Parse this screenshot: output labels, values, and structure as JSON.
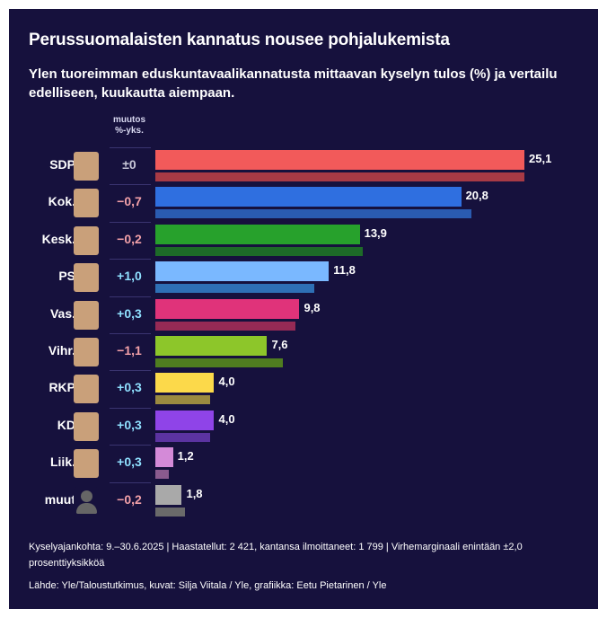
{
  "title": "Perussuomalaisten kannatus nousee pohjalukemista",
  "subtitle": "Ylen tuoreimman eduskuntavaalikannatusta mittaavan kyselyn tulos (%) ja vertailu edelliseen, kuukautta aiempaan.",
  "change_header": [
    "muutos",
    "%-yks."
  ],
  "chart_data": {
    "type": "bar",
    "title": "Perussuomalaisten kannatus nousee pohjalukemista",
    "categories": [
      "SDP",
      "Kok.",
      "Kesk.",
      "PS",
      "Vas.",
      "Vihr.",
      "RKP",
      "KD",
      "Liik.",
      "muut"
    ],
    "series": [
      {
        "name": "current",
        "values": [
          25.1,
          20.8,
          13.9,
          11.8,
          9.8,
          7.6,
          4.0,
          4.0,
          1.2,
          1.8
        ]
      },
      {
        "name": "previous",
        "values": [
          25.1,
          21.5,
          14.1,
          10.8,
          9.5,
          8.7,
          3.7,
          3.7,
          0.9,
          2.0
        ]
      }
    ],
    "value_labels": [
      "25,1",
      "20,8",
      "13,9",
      "11,8",
      "9,8",
      "7,6",
      "4,0",
      "4,0",
      "1,2",
      "1,8"
    ],
    "changes": [
      "±0",
      "−0,7",
      "−0,2",
      "+1,0",
      "+0,3",
      "−1,1",
      "+0,3",
      "+0,3",
      "+0,3",
      "−0,2"
    ],
    "colors": [
      "#f25a5a",
      "#2f6fe0",
      "#27a12c",
      "#7ab8ff",
      "#e0337a",
      "#8dc62a",
      "#fcd94a",
      "#8f44e8",
      "#d48ad8",
      "#a9a9a9"
    ],
    "prev_colors": [
      "#a83a45",
      "#2a5bb0",
      "#1d6b28",
      "#2e6fb5",
      "#962a55",
      "#4f7d20",
      "#9b8a40",
      "#5b33a0",
      "#8a5b8f",
      "#6a6a6a"
    ],
    "xlim": [
      0,
      25.1
    ]
  },
  "footer": "Kyselyajankohta: 9.–30.6.2025 | Haastatellut: 2 421, kantansa ilmoittaneet: 1 799 | Virhemarginaali enintään ±2,0 prosenttiyksikköä",
  "source": "Lähde: Yle/Taloustutkimus, kuvat: Silja Viitala / Yle, grafiikka: Eetu Pietarinen / Yle"
}
